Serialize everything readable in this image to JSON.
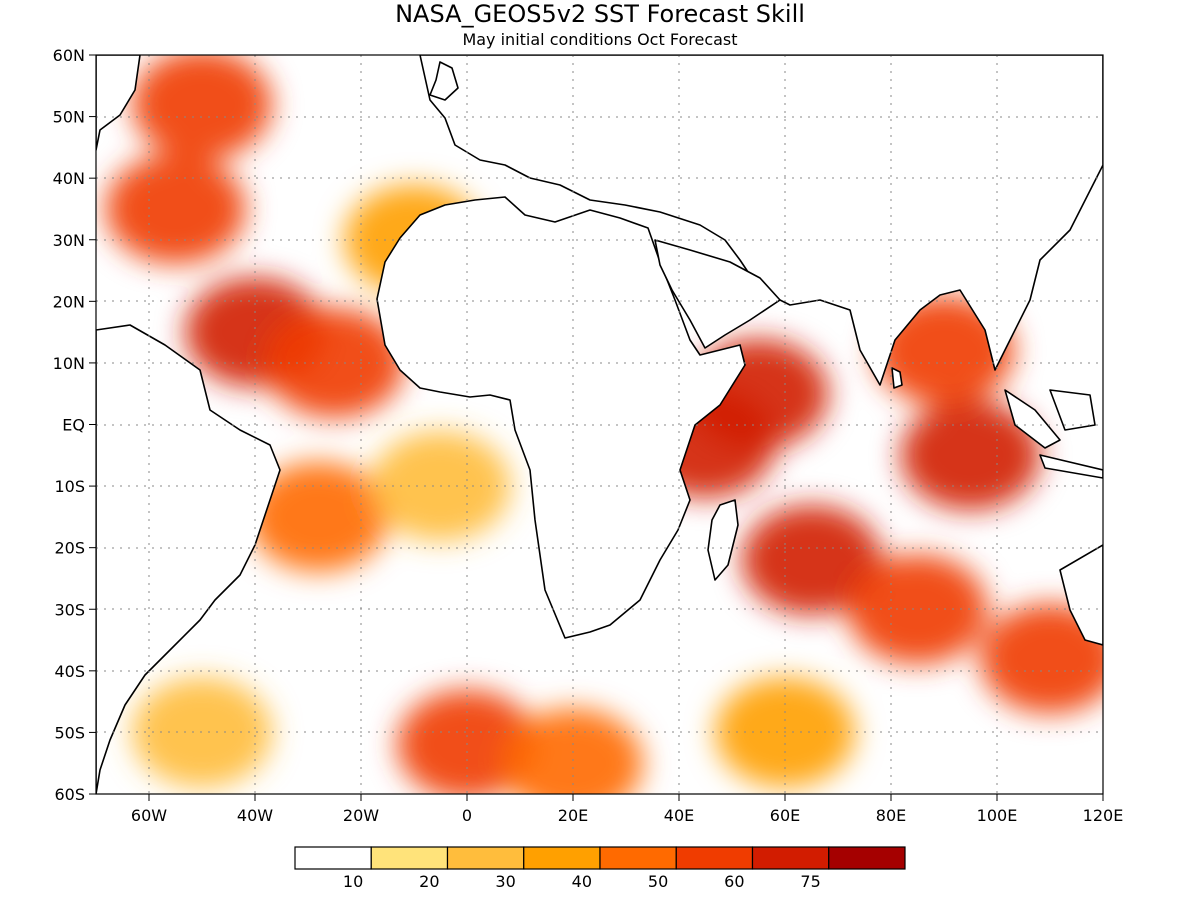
{
  "title": "NASA_GEOS5v2  SST  Forecast  Skill",
  "subtitle": "May initial conditions   Oct Forecast",
  "chart_data": {
    "type": "heatmap",
    "title": "NASA_GEOS5v2  SST  Forecast  Skill",
    "subtitle": "May initial conditions   Oct Forecast",
    "x_range": [
      -70,
      120
    ],
    "y_range": [
      -60,
      60
    ],
    "x_ticks": [
      {
        "value": -60,
        "label": "60W"
      },
      {
        "value": -40,
        "label": "40W"
      },
      {
        "value": -20,
        "label": "20W"
      },
      {
        "value": 0,
        "label": "0"
      },
      {
        "value": 20,
        "label": "20E"
      },
      {
        "value": 40,
        "label": "40E"
      },
      {
        "value": 60,
        "label": "60E"
      },
      {
        "value": 80,
        "label": "80E"
      },
      {
        "value": 100,
        "label": "100E"
      },
      {
        "value": 120,
        "label": "120E"
      }
    ],
    "y_ticks": [
      {
        "value": 60,
        "label": "60N"
      },
      {
        "value": 50,
        "label": "50N"
      },
      {
        "value": 40,
        "label": "40N"
      },
      {
        "value": 30,
        "label": "30N"
      },
      {
        "value": 20,
        "label": "20N"
      },
      {
        "value": 10,
        "label": "10N"
      },
      {
        "value": 0,
        "label": "EQ"
      },
      {
        "value": -10,
        "label": "10S"
      },
      {
        "value": -20,
        "label": "20S"
      },
      {
        "value": -30,
        "label": "30S"
      },
      {
        "value": -40,
        "label": "40S"
      },
      {
        "value": -50,
        "label": "50S"
      },
      {
        "value": -60,
        "label": "60S"
      }
    ],
    "grid": true,
    "colorbar": {
      "colors": [
        "#ffffff",
        "#ffe37a",
        "#ffbd3c",
        "#ffa000",
        "#ff6a00",
        "#f03c00",
        "#d21c00",
        "#a50000"
      ],
      "labels": [
        "10",
        "20",
        "30",
        "40",
        "50",
        "60",
        "75"
      ]
    },
    "regions": [
      {
        "lon": -50,
        "lat": 52,
        "value": 55
      },
      {
        "lon": -55,
        "lat": 35,
        "value": 55
      },
      {
        "lon": -40,
        "lat": 15,
        "value": 60
      },
      {
        "lon": -25,
        "lat": 10,
        "value": 55
      },
      {
        "lon": -10,
        "lat": 30,
        "value": 35
      },
      {
        "lon": -28,
        "lat": -15,
        "value": 45
      },
      {
        "lon": -5,
        "lat": -10,
        "value": 25
      },
      {
        "lon": 0,
        "lat": -52,
        "value": 55
      },
      {
        "lon": 45,
        "lat": -3,
        "value": 65
      },
      {
        "lon": 55,
        "lat": 5,
        "value": 60
      },
      {
        "lon": 95,
        "lat": -5,
        "value": 65
      },
      {
        "lon": 90,
        "lat": 12,
        "value": 55
      },
      {
        "lon": 65,
        "lat": -22,
        "value": 60
      },
      {
        "lon": 85,
        "lat": -30,
        "value": 55
      },
      {
        "lon": 110,
        "lat": -38,
        "value": 50
      },
      {
        "lon": 20,
        "lat": -55,
        "value": 45
      },
      {
        "lon": 60,
        "lat": -50,
        "value": 35
      },
      {
        "lon": -50,
        "lat": -50,
        "value": 20
      }
    ]
  }
}
